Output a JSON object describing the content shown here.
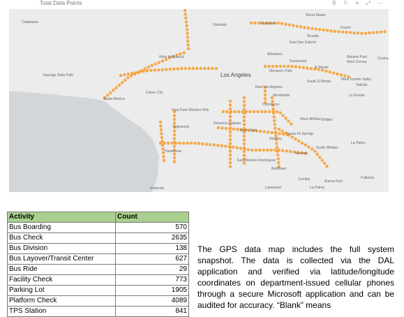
{
  "header": {
    "title": "Total Data Points"
  },
  "map": {
    "labels": [
      "Calabasas",
      "Glendale",
      "Pasadena",
      "Sierra Madre",
      "Duarte",
      "Arcadia",
      "West Hollywood",
      "Alhambra",
      "East San Gabriel",
      "Rosemead",
      "El Monte",
      "Baldwin Park",
      "West Covina",
      "Covina",
      "Topanga State Park",
      "Los Angeles",
      "Monterey Park",
      "South El Monte",
      "West Puente Valley",
      "Santa Monica",
      "Culver City",
      "East Los Angeles",
      "Montebello",
      "Valinda",
      "La Puente",
      "View Park-Windsor Hills",
      "Inglewood",
      "Florence-Graham",
      "South Gate",
      "Commerce",
      "West Whittier",
      "Whittier",
      "Hawthorne",
      "Downey",
      "Santa Fe Springs",
      "South Whittier",
      "La Habra",
      "Norwalk",
      "East Rancho Dominguez",
      "Bellflower",
      "Cerritos",
      "Fullerton",
      "Buena Park",
      "Redondo",
      "Lakewood",
      "La Palma"
    ]
  },
  "table": {
    "columns": [
      "Activity",
      "Count"
    ],
    "rows": [
      [
        "Bus Boarding",
        570
      ],
      [
        "Bus Check",
        2635
      ],
      [
        "Bus Division",
        138
      ],
      [
        "Bus Layover/Transit Center",
        627
      ],
      [
        "Bus Ride",
        29
      ],
      [
        "Facility Check",
        773
      ],
      [
        "Parking Lot",
        1905
      ],
      [
        "Platform Check",
        4089
      ],
      [
        "TPS Station",
        841
      ]
    ]
  },
  "paragraph": "The GPS data map includes the full system snapshot. The data is collected via the DAL application and verified via latitude/longitude coordinates on department-issued cellular phones through a secure Microsoft application and can be audited for accuracy. “Blank” means"
}
